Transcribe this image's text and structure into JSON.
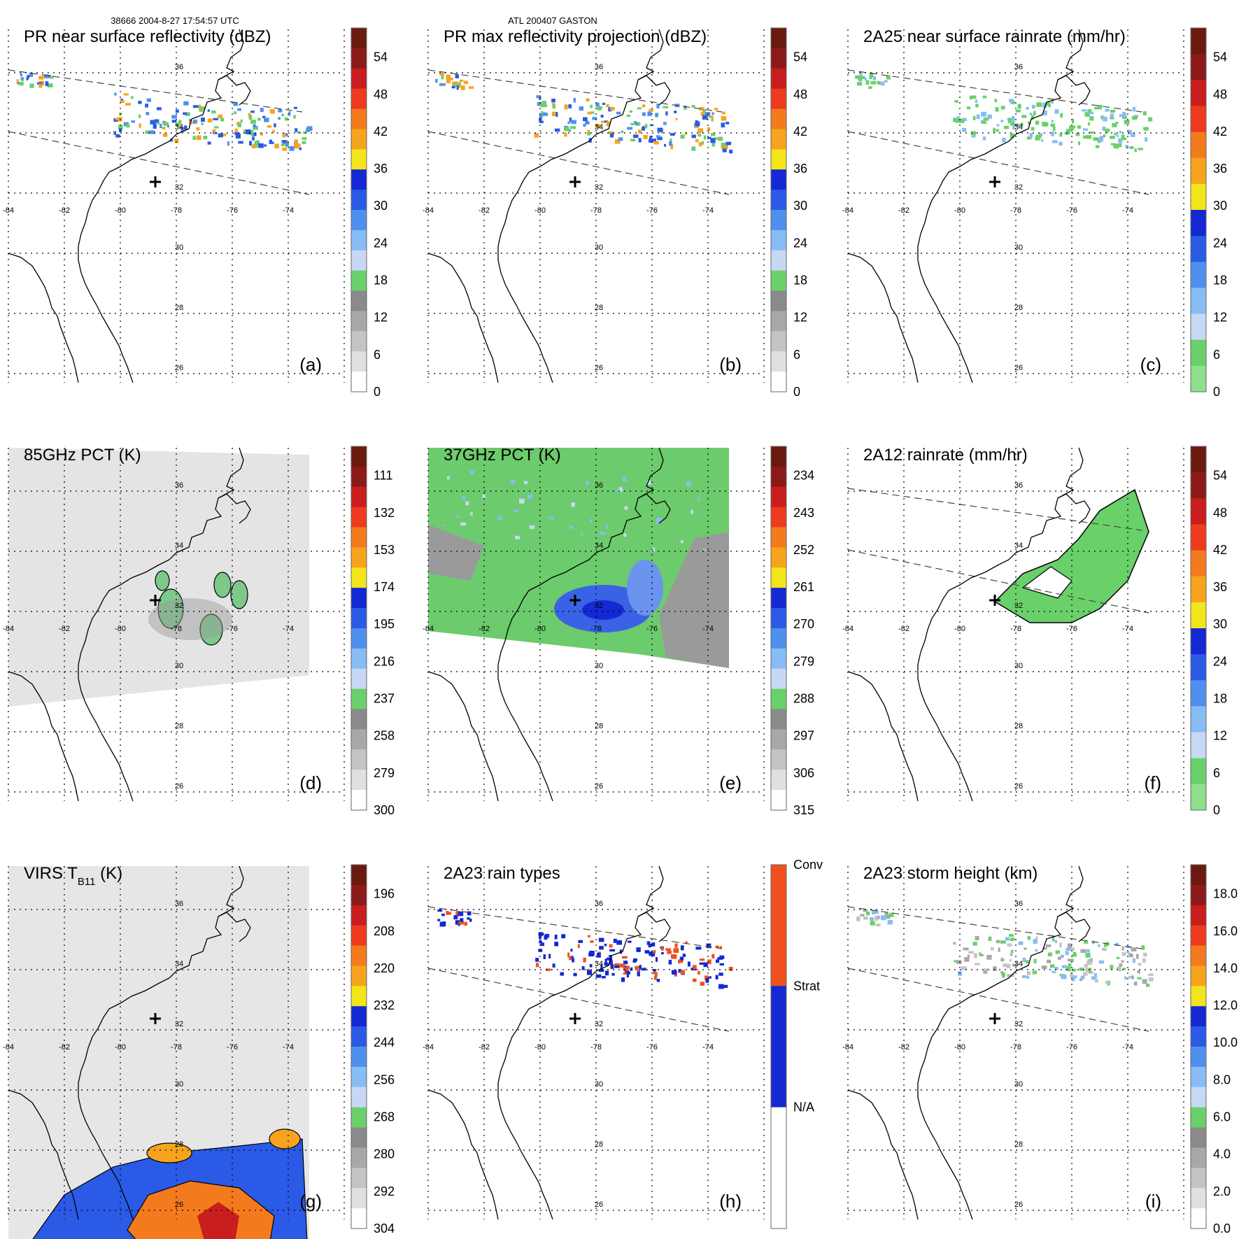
{
  "header": {
    "orbit_line": "38666 2004-8-27 17:54:57 UTC",
    "storm_line": "ATL 200407 GASTON"
  },
  "lon_labels": [
    "-84",
    "-82",
    "-80",
    "-78",
    "-76",
    "-74"
  ],
  "lat_labels": [
    "36",
    "34",
    "32",
    "30",
    "28",
    "26"
  ],
  "panels": [
    {
      "title": "PR near surface reflectivity (dBZ)",
      "letter": "(a)",
      "bg": "none",
      "scale": [
        "54",
        "48",
        "42",
        "36",
        "30",
        "24",
        "18",
        "12",
        "6",
        "0"
      ],
      "colors": [
        "#6b1a10",
        "#8c1a1a",
        "#c81e1e",
        "#ee3a1e",
        "#f47a1e",
        "#f6a41e",
        "#f3e51a",
        "#1428d4",
        "#2a5ae6",
        "#4f90ee",
        "#88bcf4",
        "#c8d8f4",
        "#6ad06a",
        "#8a8a8a",
        "#a8a8a8",
        "#c4c4c4",
        "#e0e0e0",
        "#ffffff"
      ]
    },
    {
      "title": "PR max reflectivity projection (dBZ)",
      "letter": "(b)",
      "bg": "none",
      "scale": [
        "54",
        "48",
        "42",
        "36",
        "30",
        "24",
        "18",
        "12",
        "6",
        "0"
      ],
      "colors": [
        "#6b1a10",
        "#8c1a1a",
        "#c81e1e",
        "#ee3a1e",
        "#f47a1e",
        "#f6a41e",
        "#f3e51a",
        "#1428d4",
        "#2a5ae6",
        "#4f90ee",
        "#88bcf4",
        "#c8d8f4",
        "#6ad06a",
        "#8a8a8a",
        "#a8a8a8",
        "#c4c4c4",
        "#e0e0e0",
        "#ffffff"
      ]
    },
    {
      "title": "2A25 near surface rainrate (mm/hr)",
      "letter": "(c)",
      "bg": "none",
      "scale": [
        "54",
        "48",
        "42",
        "36",
        "30",
        "24",
        "18",
        "12",
        "6",
        "0"
      ],
      "colors": [
        "#6b1a10",
        "#8c1a1a",
        "#c81e1e",
        "#ee3a1e",
        "#f47a1e",
        "#f6a41e",
        "#f3e51a",
        "#1428d4",
        "#2a5ae6",
        "#4f90ee",
        "#88bcf4",
        "#c8d8f4",
        "#6ad06a",
        "#8ee08e"
      ]
    },
    {
      "title": "85GHz PCT (K)",
      "letter": "(d)",
      "bg": "gray",
      "scale": [
        "111",
        "132",
        "153",
        "174",
        "195",
        "216",
        "237",
        "258",
        "279",
        "300"
      ],
      "colors": [
        "#6b1a10",
        "#8c1a1a",
        "#c81e1e",
        "#ee3a1e",
        "#f47a1e",
        "#f6a41e",
        "#f3e51a",
        "#1428d4",
        "#2a5ae6",
        "#4f90ee",
        "#88bcf4",
        "#c8d8f4",
        "#6ad06a",
        "#8a8a8a",
        "#a8a8a8",
        "#c4c4c4",
        "#e0e0e0",
        "#ffffff"
      ]
    },
    {
      "title": "37GHz PCT (K)",
      "letter": "(e)",
      "bg": "green",
      "scale": [
        "234",
        "243",
        "252",
        "261",
        "270",
        "279",
        "288",
        "297",
        "306",
        "315"
      ],
      "colors": [
        "#6b1a10",
        "#8c1a1a",
        "#c81e1e",
        "#ee3a1e",
        "#f47a1e",
        "#f6a41e",
        "#f3e51a",
        "#1428d4",
        "#2a5ae6",
        "#4f90ee",
        "#88bcf4",
        "#c8d8f4",
        "#6ad06a",
        "#8a8a8a",
        "#a8a8a8",
        "#c4c4c4",
        "#e0e0e0",
        "#ffffff"
      ]
    },
    {
      "title": "2A12 rainrate (mm/hr)",
      "letter": "(f)",
      "bg": "none",
      "scale": [
        "54",
        "48",
        "42",
        "36",
        "30",
        "24",
        "18",
        "12",
        "6",
        "0"
      ],
      "colors": [
        "#6b1a10",
        "#8c1a1a",
        "#c81e1e",
        "#ee3a1e",
        "#f47a1e",
        "#f6a41e",
        "#f3e51a",
        "#1428d4",
        "#2a5ae6",
        "#4f90ee",
        "#88bcf4",
        "#c8d8f4",
        "#6ad06a",
        "#8ee08e"
      ]
    },
    {
      "title": "VIRS T",
      "title_sub": "B11",
      "title_suffix": " (K)",
      "letter": "(g)",
      "bg": "virs",
      "scale": [
        "196",
        "208",
        "220",
        "232",
        "244",
        "256",
        "268",
        "280",
        "292",
        "304"
      ],
      "colors": [
        "#6b1a10",
        "#8c1a1a",
        "#c81e1e",
        "#ee3a1e",
        "#f47a1e",
        "#f6a41e",
        "#f3e51a",
        "#1428d4",
        "#2a5ae6",
        "#4f90ee",
        "#88bcf4",
        "#c8d8f4",
        "#6ad06a",
        "#8a8a8a",
        "#a8a8a8",
        "#c4c4c4",
        "#e0e0e0",
        "#ffffff"
      ]
    },
    {
      "title": "2A23 rain types",
      "letter": "(h)",
      "bg": "none",
      "scale": [
        "Conv",
        "Strat",
        "N/A"
      ],
      "colors": [
        "#f0501e",
        "#1428d4",
        "#ffffff"
      ]
    },
    {
      "title": "2A23 storm height (km)",
      "letter": "(i)",
      "bg": "none",
      "scale": [
        "18.0",
        "16.0",
        "14.0",
        "12.0",
        "10.0",
        "8.0",
        "6.0",
        "4.0",
        "2.0",
        "0.0"
      ],
      "colors": [
        "#6b1a10",
        "#8c1a1a",
        "#c81e1e",
        "#ee3a1e",
        "#f47a1e",
        "#f6a41e",
        "#f3e51a",
        "#1428d4",
        "#2a5ae6",
        "#4f90ee",
        "#88bcf4",
        "#c8d8f4",
        "#6ad06a",
        "#8a8a8a",
        "#a8a8a8",
        "#c4c4c4",
        "#e0e0e0",
        "#ffffff"
      ]
    }
  ]
}
